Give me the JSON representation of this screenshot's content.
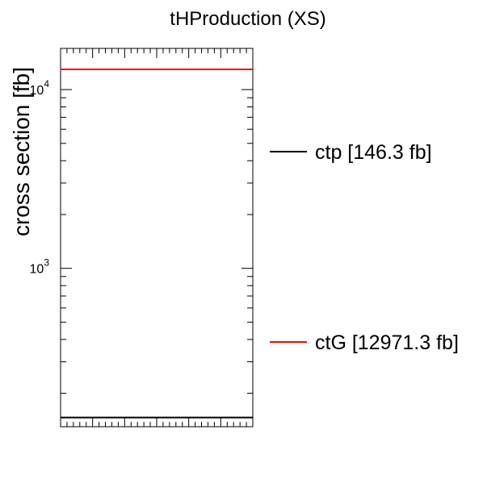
{
  "chart_data": {
    "type": "line",
    "title": "tHProduction (XS)",
    "ylabel": "cross section [fb]",
    "xlabel": "",
    "y_scale": "log",
    "ylim": [
      130,
      17000
    ],
    "y_major_ticks": [
      {
        "value": 1000,
        "base": "10",
        "exp": "3"
      },
      {
        "value": 10000,
        "base": "10",
        "exp": "4"
      }
    ],
    "grid": false,
    "legend_position": "right",
    "series": [
      {
        "name": "ctp [146.3 fb]",
        "value": 146.3,
        "color": "#000000"
      },
      {
        "name": "ctG [12971.3 fb]",
        "value": 12971.3,
        "color": "#ff0000"
      }
    ]
  }
}
